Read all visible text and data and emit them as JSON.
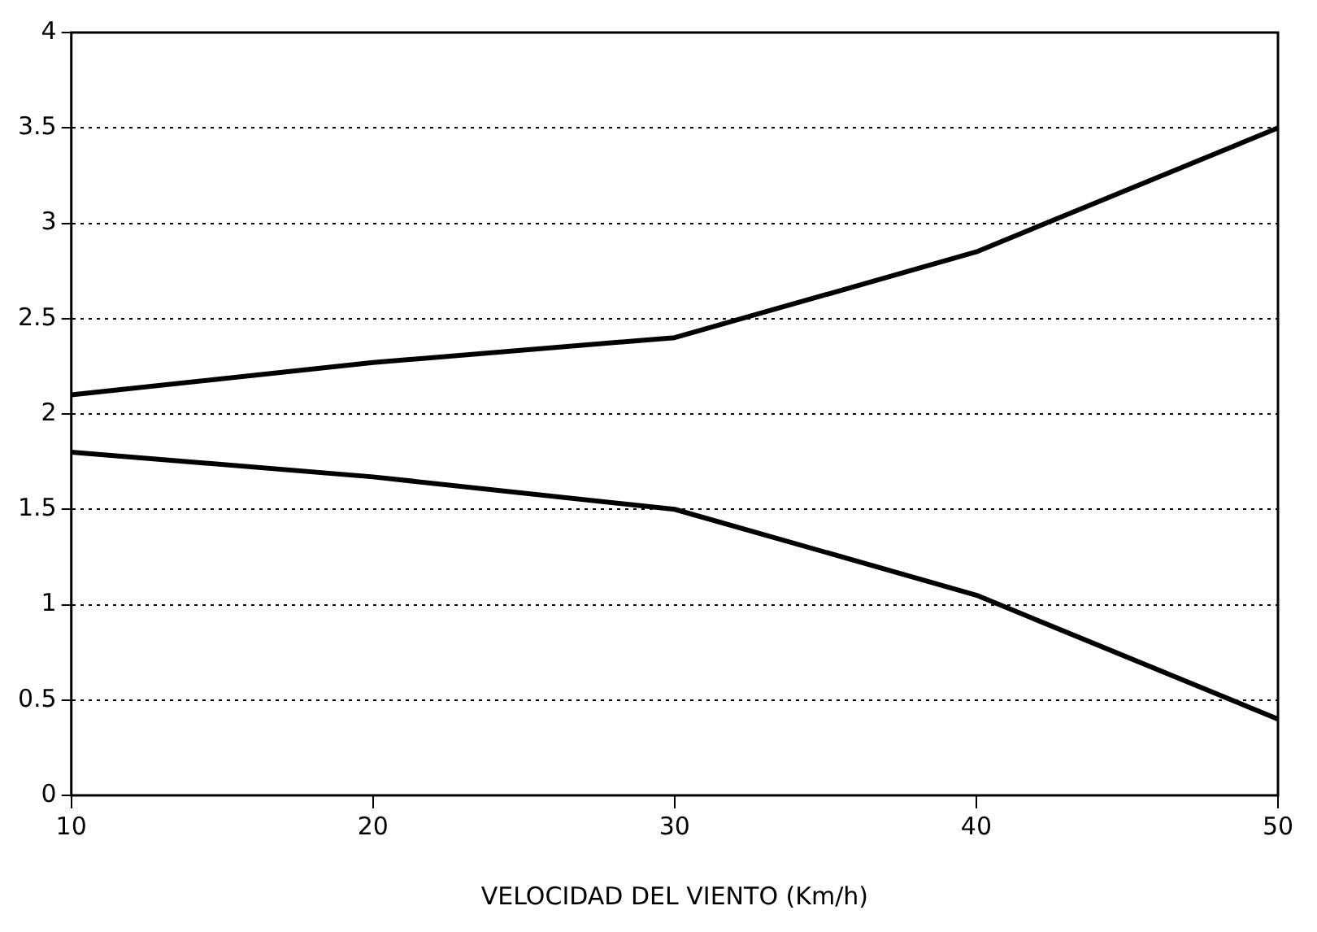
{
  "chart_data": {
    "type": "line",
    "xlabel": "VELOCIDAD DEL VIENTO (Km/h)",
    "x": [
      10,
      20,
      30,
      40,
      50
    ],
    "series": [
      {
        "color": "#000000",
        "values": [
          2.1,
          2.27,
          2.4,
          2.85,
          3.5
        ]
      },
      {
        "color": "#000000",
        "values": [
          1.8,
          1.67,
          1.5,
          1.05,
          0.4
        ]
      }
    ],
    "xlim": [
      10,
      50
    ],
    "xticks": [
      10,
      20,
      30,
      40,
      50
    ],
    "ylim": [
      0,
      4
    ],
    "yticks": [
      0,
      0.5,
      1,
      1.5,
      2,
      2.5,
      3,
      3.5,
      4
    ],
    "grid": "y",
    "legend": false,
    "marker": "none",
    "line_style": "solid"
  }
}
